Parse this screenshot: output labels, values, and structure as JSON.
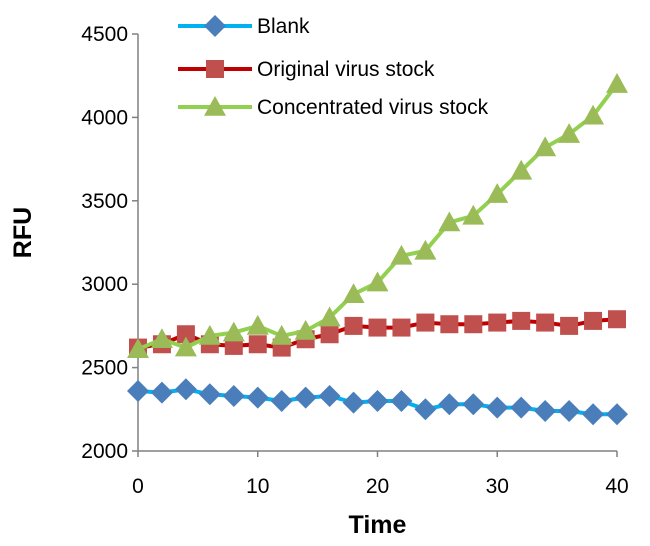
{
  "chart_data": {
    "type": "line",
    "xlabel": "Time",
    "ylabel": "RFU",
    "xlim": [
      0,
      40
    ],
    "ylim": [
      2000,
      4500
    ],
    "x_ticks": [
      0,
      10,
      20,
      30,
      40
    ],
    "y_ticks": [
      2000,
      2500,
      3000,
      3500,
      4000,
      4500
    ],
    "grid": false,
    "legend_position": "top-left",
    "x": [
      0,
      2,
      4,
      6,
      8,
      10,
      12,
      14,
      16,
      18,
      20,
      22,
      24,
      26,
      28,
      30,
      32,
      34,
      36,
      38,
      40
    ],
    "series": [
      {
        "name": "Blank",
        "marker": "diamond",
        "line_color": "#00b0f0",
        "marker_color": "#4a7ebb",
        "values": [
          2360,
          2350,
          2370,
          2340,
          2330,
          2320,
          2300,
          2320,
          2330,
          2290,
          2300,
          2300,
          2250,
          2280,
          2280,
          2260,
          2260,
          2240,
          2240,
          2220,
          2220
        ]
      },
      {
        "name": "Original virus stock",
        "marker": "square",
        "line_color": "#c00000",
        "marker_color": "#c0504d",
        "values": [
          2620,
          2640,
          2700,
          2640,
          2630,
          2640,
          2620,
          2670,
          2700,
          2750,
          2740,
          2740,
          2770,
          2760,
          2760,
          2770,
          2780,
          2770,
          2750,
          2780,
          2790
        ]
      },
      {
        "name": "Concentrated virus stock",
        "marker": "triangle",
        "line_color": "#92d050",
        "marker_color": "#9bbb59",
        "values": [
          2610,
          2670,
          2620,
          2690,
          2710,
          2750,
          2690,
          2720,
          2800,
          2940,
          3010,
          3170,
          3200,
          3370,
          3410,
          3540,
          3680,
          3820,
          3900,
          4010,
          4200
        ]
      }
    ]
  }
}
